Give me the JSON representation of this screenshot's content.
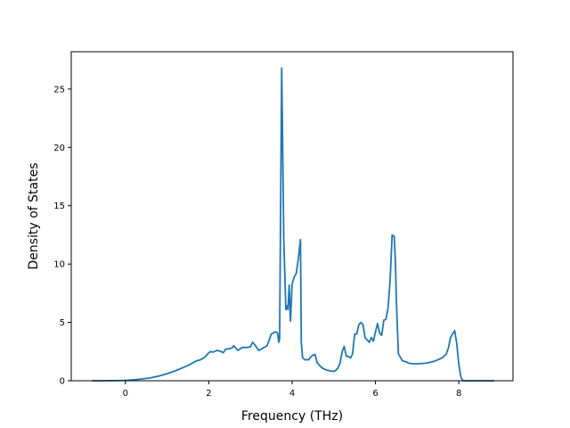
{
  "chart_data": {
    "type": "line",
    "title": "",
    "xlabel": "Frequency (THz)",
    "ylabel": "Density of States",
    "xlim": [
      -1.3,
      9.3
    ],
    "ylim": [
      0,
      28.2
    ],
    "xticks": [
      0,
      2,
      4,
      6,
      8
    ],
    "yticks": [
      0,
      5,
      10,
      15,
      20,
      25
    ],
    "grid": false,
    "legend": "none",
    "color": "#1f77b4",
    "series": [
      {
        "x": [
          -0.8,
          -0.5,
          0.0,
          0.2,
          0.4,
          0.6,
          0.8,
          1.0,
          1.2,
          1.4,
          1.55,
          1.7,
          1.8,
          1.9,
          2.0,
          2.05,
          2.1,
          2.2,
          2.3,
          2.35,
          2.4,
          2.5,
          2.55,
          2.6,
          2.7,
          2.8,
          2.9,
          3.0,
          3.05,
          3.1,
          3.2,
          3.3,
          3.4,
          3.5,
          3.55,
          3.6,
          3.65,
          3.68,
          3.7,
          3.75,
          3.8,
          3.85,
          3.88,
          3.9,
          3.93,
          3.96,
          4.0,
          4.05,
          4.1,
          4.15,
          4.2,
          4.22,
          4.25,
          4.3,
          4.4,
          4.45,
          4.5,
          4.55,
          4.6,
          4.7,
          4.8,
          4.9,
          5.0,
          5.05,
          5.1,
          5.15,
          5.2,
          5.25,
          5.3,
          5.35,
          5.4,
          5.45,
          5.5,
          5.55,
          5.6,
          5.65,
          5.7,
          5.75,
          5.8,
          5.85,
          5.9,
          5.95,
          6.0,
          6.05,
          6.1,
          6.15,
          6.2,
          6.25,
          6.3,
          6.35,
          6.4,
          6.42,
          6.45,
          6.48,
          6.5,
          6.55,
          6.6,
          6.65,
          6.7,
          6.75,
          6.8,
          6.9,
          7.0,
          7.2,
          7.4,
          7.6,
          7.7,
          7.75,
          7.8,
          7.85,
          7.9,
          7.95,
          8.0,
          8.05,
          8.1,
          8.15,
          8.3,
          8.85
        ],
        "y": [
          0,
          0,
          0.03,
          0.08,
          0.15,
          0.25,
          0.4,
          0.6,
          0.85,
          1.15,
          1.4,
          1.7,
          1.8,
          2.0,
          2.4,
          2.5,
          2.45,
          2.6,
          2.5,
          2.4,
          2.7,
          2.75,
          2.8,
          3.0,
          2.6,
          2.85,
          2.85,
          2.9,
          3.3,
          3.1,
          2.6,
          2.8,
          3.0,
          4.0,
          4.1,
          4.2,
          4.1,
          3.3,
          3.6,
          26.8,
          12.0,
          6.1,
          6.4,
          6.1,
          8.2,
          5.1,
          8.3,
          8.9,
          9.2,
          10.5,
          12.1,
          3.3,
          2.0,
          1.8,
          1.8,
          2.05,
          2.2,
          2.25,
          1.55,
          1.15,
          0.95,
          0.85,
          0.8,
          0.9,
          1.1,
          1.5,
          2.5,
          2.95,
          2.1,
          2.1,
          1.95,
          2.3,
          4.0,
          4.0,
          4.8,
          5.0,
          4.8,
          3.7,
          3.5,
          3.3,
          3.7,
          3.4,
          4.2,
          4.9,
          4.1,
          3.9,
          5.2,
          5.25,
          6.2,
          8.5,
          12.5,
          12.4,
          12.4,
          10.0,
          7.0,
          2.3,
          2.0,
          1.7,
          1.65,
          1.6,
          1.5,
          1.45,
          1.45,
          1.5,
          1.65,
          1.95,
          2.3,
          2.8,
          3.7,
          4.0,
          4.3,
          3.2,
          1.4,
          0.3,
          0,
          0,
          0,
          0
        ]
      }
    ]
  }
}
